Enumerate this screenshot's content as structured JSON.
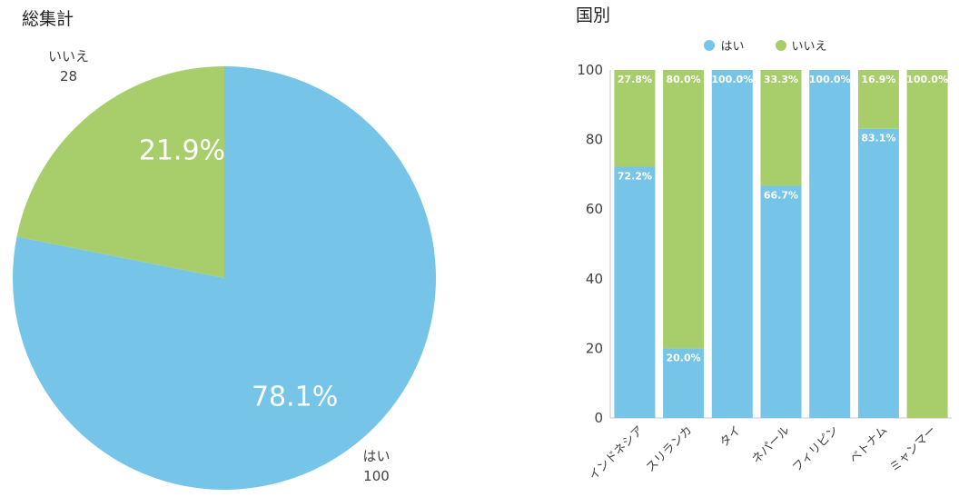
{
  "colors": {
    "yes": "#76C5E8",
    "no": "#A8CE6C",
    "segment_label": "#FFFFFF",
    "axis_text": "#404040",
    "axis_line": "#C9C9C9",
    "title_text": "#1F1F1F",
    "outside_label_text": "#3F3F3F"
  },
  "pie_panel": {
    "title": "総集計"
  },
  "bar_panel": {
    "title": "国別",
    "legend": [
      {
        "label": "はい",
        "color_key": "yes"
      },
      {
        "label": "いいえ",
        "color_key": "no"
      }
    ]
  },
  "chart_data": [
    {
      "type": "pie",
      "title": "総集計",
      "slices": [
        {
          "label": "はい",
          "value": 100,
          "percent_label": "78.1%",
          "color_key": "yes"
        },
        {
          "label": "いいえ",
          "value": 28,
          "percent_label": "21.9%",
          "color_key": "no"
        }
      ],
      "start_angle_deg": 0,
      "clockwise": true,
      "legend_position": "none"
    },
    {
      "type": "bar",
      "stacked": true,
      "title": "国別",
      "categories": [
        "インドネシア",
        "スリランカ",
        "タイ",
        "ネパール",
        "フィリピン",
        "ベトナム",
        "ミャンマー"
      ],
      "series": [
        {
          "name": "はい",
          "color_key": "yes",
          "values": [
            72.2,
            20.0,
            100.0,
            66.7,
            100.0,
            83.1,
            0.0
          ]
        },
        {
          "name": "いいえ",
          "color_key": "no",
          "values": [
            27.8,
            80.0,
            0.0,
            33.3,
            0.0,
            16.9,
            100.0
          ]
        }
      ],
      "ylim": [
        0,
        100
      ],
      "yticks": [
        0,
        20,
        40,
        60,
        80,
        100
      ],
      "grid": false,
      "legend_position": "top",
      "value_label_format": "{value:.1f}%"
    }
  ]
}
